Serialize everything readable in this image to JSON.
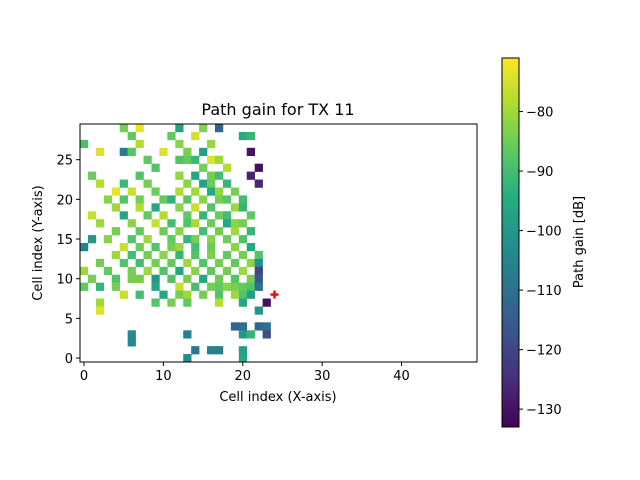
{
  "chart_data": {
    "type": "heatmap",
    "title": "Path gain for TX 11",
    "xlabel": "Cell index (X-axis)",
    "ylabel": "Cell index (Y-axis)",
    "xlim": [
      -0.5,
      49.5
    ],
    "ylim": [
      -0.5,
      29.5
    ],
    "xticks": [
      0,
      10,
      20,
      30,
      40
    ],
    "yticks": [
      0,
      5,
      10,
      15,
      20,
      25
    ],
    "colorbar": {
      "label": "Path gain [dB]",
      "range": [
        -133,
        -71
      ],
      "ticks": [
        -80,
        -90,
        -100,
        -110,
        -120,
        -130
      ],
      "colormap": "viridis"
    },
    "transmitter": {
      "x": 24,
      "y": 8,
      "color": "#ff0000"
    },
    "cells": [
      [
        5,
        29,
        -84
      ],
      [
        7,
        29,
        -73
      ],
      [
        12,
        29,
        -97
      ],
      [
        15,
        29,
        -83
      ],
      [
        17,
        29,
        -113
      ],
      [
        6,
        28,
        -86
      ],
      [
        11,
        28,
        -86
      ],
      [
        14,
        28,
        -75
      ],
      [
        20,
        28,
        -95
      ],
      [
        21,
        28,
        -92
      ],
      [
        0,
        27,
        -89
      ],
      [
        7,
        27,
        -78
      ],
      [
        12,
        27,
        -82
      ],
      [
        16,
        27,
        -81
      ],
      [
        2,
        26,
        -74
      ],
      [
        5,
        26,
        -107
      ],
      [
        6,
        26,
        -87
      ],
      [
        10,
        26,
        -74
      ],
      [
        13,
        26,
        -84
      ],
      [
        15,
        26,
        -98
      ],
      [
        21,
        26,
        -130
      ],
      [
        8,
        25,
        -86
      ],
      [
        12,
        25,
        -88
      ],
      [
        13,
        25,
        -86
      ],
      [
        14,
        25,
        -91
      ],
      [
        16,
        25,
        -74
      ],
      [
        17,
        25,
        -80
      ],
      [
        9,
        24,
        -88
      ],
      [
        15,
        24,
        -84
      ],
      [
        18,
        24,
        -78
      ],
      [
        22,
        24,
        -130
      ],
      [
        1,
        23,
        -85
      ],
      [
        7,
        23,
        -88
      ],
      [
        12,
        23,
        -81
      ],
      [
        14,
        23,
        -96
      ],
      [
        16,
        23,
        -84
      ],
      [
        17,
        23,
        -90
      ],
      [
        21,
        23,
        -127
      ],
      [
        2,
        22,
        -78
      ],
      [
        5,
        22,
        -91
      ],
      [
        8,
        22,
        -84
      ],
      [
        13,
        22,
        -82
      ],
      [
        15,
        22,
        -97
      ],
      [
        16,
        22,
        -85
      ],
      [
        18,
        22,
        -92
      ],
      [
        22,
        22,
        -126
      ],
      [
        4,
        21,
        -73
      ],
      [
        6,
        21,
        -76
      ],
      [
        9,
        21,
        -85
      ],
      [
        12,
        21,
        -78
      ],
      [
        14,
        21,
        -80
      ],
      [
        16,
        21,
        -95
      ],
      [
        17,
        21,
        -81
      ],
      [
        19,
        21,
        -84
      ],
      [
        3,
        20,
        -82
      ],
      [
        5,
        20,
        -88
      ],
      [
        7,
        20,
        -84
      ],
      [
        10,
        20,
        -86
      ],
      [
        11,
        20,
        -93
      ],
      [
        13,
        20,
        -87
      ],
      [
        15,
        20,
        -82
      ],
      [
        17,
        20,
        -84
      ],
      [
        18,
        20,
        -87
      ],
      [
        20,
        20,
        -90
      ],
      [
        4,
        19,
        -80
      ],
      [
        7,
        19,
        -78
      ],
      [
        9,
        19,
        -96
      ],
      [
        12,
        19,
        -82
      ],
      [
        14,
        19,
        -76
      ],
      [
        16,
        19,
        -88
      ],
      [
        19,
        19,
        -80
      ],
      [
        20,
        19,
        -92
      ],
      [
        1,
        18,
        -76
      ],
      [
        5,
        18,
        -96
      ],
      [
        8,
        18,
        -86
      ],
      [
        10,
        18,
        -78
      ],
      [
        13,
        18,
        -86
      ],
      [
        15,
        18,
        -92
      ],
      [
        17,
        18,
        -85
      ],
      [
        18,
        18,
        -90
      ],
      [
        21,
        18,
        -86
      ],
      [
        2,
        17,
        -80
      ],
      [
        6,
        17,
        -82
      ],
      [
        9,
        17,
        -76
      ],
      [
        11,
        17,
        -90
      ],
      [
        13,
        17,
        -88
      ],
      [
        14,
        17,
        -79
      ],
      [
        16,
        17,
        -85
      ],
      [
        18,
        17,
        -96
      ],
      [
        19,
        17,
        -82
      ],
      [
        20,
        17,
        -84
      ],
      [
        4,
        16,
        -84
      ],
      [
        7,
        16,
        -86
      ],
      [
        10,
        16,
        -85
      ],
      [
        12,
        16,
        -82
      ],
      [
        15,
        16,
        -90
      ],
      [
        17,
        16,
        -84
      ],
      [
        19,
        16,
        -80
      ],
      [
        21,
        16,
        -92
      ],
      [
        1,
        15,
        -100
      ],
      [
        3,
        15,
        -82
      ],
      [
        6,
        15,
        -88
      ],
      [
        8,
        15,
        -80
      ],
      [
        11,
        15,
        -86
      ],
      [
        13,
        15,
        -92
      ],
      [
        14,
        15,
        -84
      ],
      [
        16,
        15,
        -82
      ],
      [
        18,
        15,
        -85
      ],
      [
        20,
        15,
        -88
      ],
      [
        0,
        14,
        -106
      ],
      [
        5,
        14,
        -76
      ],
      [
        7,
        14,
        -85
      ],
      [
        9,
        14,
        -88
      ],
      [
        11,
        14,
        -84
      ],
      [
        12,
        14,
        -80
      ],
      [
        14,
        14,
        -90
      ],
      [
        16,
        14,
        -85
      ],
      [
        19,
        14,
        -82
      ],
      [
        21,
        14,
        -96
      ],
      [
        4,
        13,
        -80
      ],
      [
        6,
        13,
        -90
      ],
      [
        8,
        13,
        -84
      ],
      [
        10,
        13,
        -82
      ],
      [
        12,
        13,
        -92
      ],
      [
        14,
        13,
        -88
      ],
      [
        16,
        13,
        -83
      ],
      [
        18,
        13,
        -86
      ],
      [
        20,
        13,
        -84
      ],
      [
        22,
        13,
        -88
      ],
      [
        2,
        12,
        -84
      ],
      [
        5,
        12,
        -88
      ],
      [
        7,
        12,
        -90
      ],
      [
        9,
        12,
        -84
      ],
      [
        11,
        12,
        -86
      ],
      [
        13,
        12,
        -80
      ],
      [
        15,
        12,
        -88
      ],
      [
        17,
        12,
        -84
      ],
      [
        19,
        12,
        -86
      ],
      [
        21,
        12,
        -82
      ],
      [
        22,
        12,
        -102
      ],
      [
        0,
        11,
        -80
      ],
      [
        3,
        11,
        -86
      ],
      [
        6,
        11,
        -84
      ],
      [
        8,
        11,
        -80
      ],
      [
        10,
        11,
        -88
      ],
      [
        12,
        11,
        -96
      ],
      [
        14,
        11,
        -82
      ],
      [
        16,
        11,
        -86
      ],
      [
        18,
        11,
        -84
      ],
      [
        20,
        11,
        -80
      ],
      [
        22,
        11,
        -120
      ],
      [
        1,
        10,
        -84
      ],
      [
        4,
        10,
        -88
      ],
      [
        6,
        10,
        -84
      ],
      [
        7,
        10,
        -84
      ],
      [
        9,
        10,
        -100
      ],
      [
        11,
        10,
        -88
      ],
      [
        13,
        10,
        -84
      ],
      [
        15,
        10,
        -96
      ],
      [
        17,
        10,
        -85
      ],
      [
        19,
        10,
        -88
      ],
      [
        21,
        10,
        -84
      ],
      [
        22,
        10,
        -116
      ],
      [
        0,
        9,
        -86
      ],
      [
        2,
        9,
        -92
      ],
      [
        4,
        9,
        -84
      ],
      [
        9,
        9,
        -96
      ],
      [
        12,
        9,
        -76
      ],
      [
        14,
        9,
        -90
      ],
      [
        16,
        9,
        -84
      ],
      [
        17,
        9,
        -86
      ],
      [
        18,
        9,
        -82
      ],
      [
        19,
        9,
        -84
      ],
      [
        20,
        9,
        -86
      ],
      [
        21,
        9,
        -88
      ],
      [
        22,
        9,
        -110
      ],
      [
        5,
        8,
        -76
      ],
      [
        7,
        8,
        -90
      ],
      [
        10,
        8,
        -96
      ],
      [
        12,
        8,
        -84
      ],
      [
        13,
        8,
        -80
      ],
      [
        15,
        8,
        -84
      ],
      [
        17,
        8,
        -88
      ],
      [
        19,
        8,
        -80
      ],
      [
        20,
        8,
        -88
      ],
      [
        21,
        8,
        -98
      ],
      [
        2,
        7,
        -80
      ],
      [
        9,
        7,
        -88
      ],
      [
        11,
        7,
        -84
      ],
      [
        13,
        7,
        -86
      ],
      [
        17,
        7,
        -78
      ],
      [
        20,
        7,
        -96
      ],
      [
        23,
        7,
        -130
      ],
      [
        2,
        6,
        -74
      ],
      [
        22,
        6,
        -100
      ],
      [
        19,
        4,
        -113
      ],
      [
        20,
        4,
        -110
      ],
      [
        22,
        4,
        -113
      ],
      [
        23,
        4,
        -110
      ],
      [
        13,
        3,
        -106
      ],
      [
        20,
        3,
        -100
      ],
      [
        21,
        3,
        -92
      ],
      [
        23,
        3,
        -118
      ],
      [
        6,
        2,
        -104
      ],
      [
        6,
        3,
        -104
      ],
      [
        14,
        1,
        -108
      ],
      [
        16,
        1,
        -106
      ],
      [
        17,
        1,
        -106
      ],
      [
        20,
        1,
        -98
      ],
      [
        13,
        0,
        -104
      ],
      [
        20,
        0,
        -96
      ]
    ]
  }
}
